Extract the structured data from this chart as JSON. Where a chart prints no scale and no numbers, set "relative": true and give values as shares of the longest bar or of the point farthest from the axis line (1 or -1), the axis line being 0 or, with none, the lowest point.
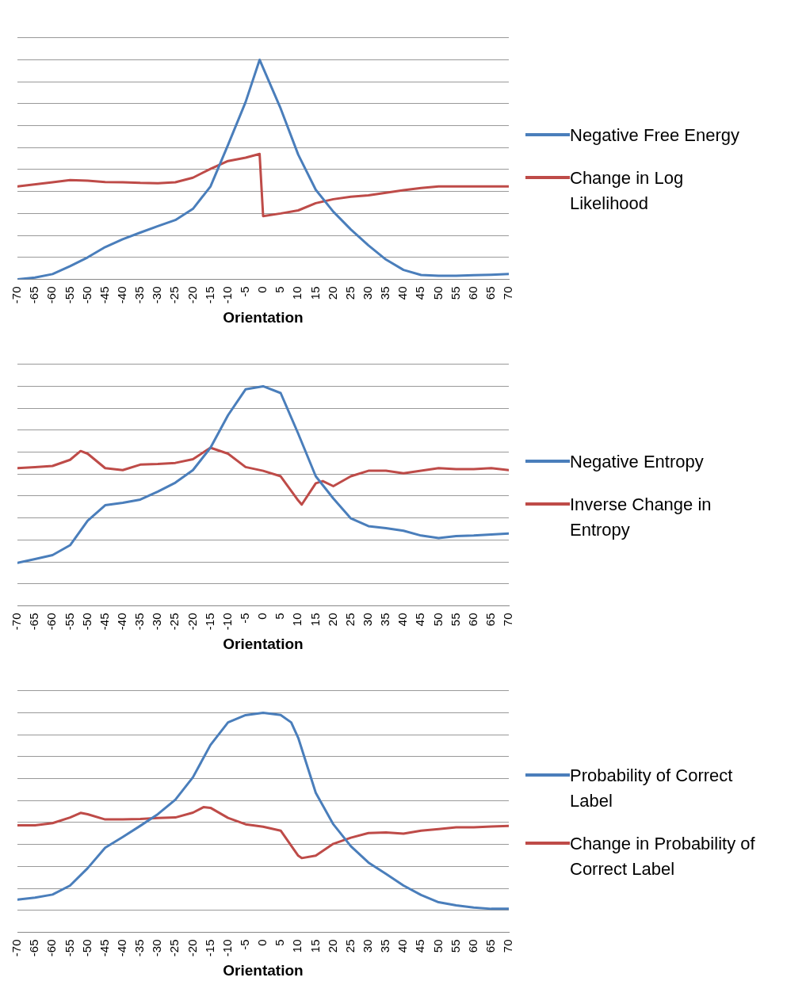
{
  "chart_data": [
    {
      "type": "line",
      "relative": true,
      "xlabel": "Orientation",
      "xlim": [
        -70,
        70
      ],
      "xticks": [
        -70,
        -65,
        -60,
        -55,
        -50,
        -45,
        -40,
        -35,
        -30,
        -25,
        -20,
        -15,
        -10,
        -5,
        0,
        5,
        10,
        15,
        20,
        25,
        30,
        35,
        40,
        45,
        50,
        55,
        60,
        65,
        70
      ],
      "grid": "y",
      "legend": "right",
      "marker": "none",
      "series": [
        {
          "name": "Negative Free Energy",
          "color": "#4a7ebb",
          "x": [
            -70,
            -65,
            -60,
            -55,
            -50,
            -45,
            -40,
            -35,
            -30,
            -25,
            -20,
            -15,
            -10,
            -5,
            -1,
            5,
            10,
            15,
            20,
            25,
            30,
            35,
            40,
            45,
            50,
            55,
            60,
            65,
            70
          ],
          "values": [
            0,
            0.008,
            0.024,
            0.06,
            0.1,
            0.147,
            0.183,
            0.213,
            0.242,
            0.27,
            0.321,
            0.423,
            0.612,
            0.807,
            1,
            0.778,
            0.568,
            0.408,
            0.308,
            0.227,
            0.155,
            0.09,
            0.043,
            0.02,
            0.016,
            0.016,
            0.019,
            0.021,
            0.024
          ]
        },
        {
          "name": "Change in Log Likelihood",
          "color": "#be4b48",
          "x": [
            -70,
            -60,
            -55,
            -50,
            -45,
            -40,
            -35,
            -30,
            -25,
            -20,
            -15,
            -10,
            -5,
            -1,
            0,
            5,
            10,
            15,
            20,
            25,
            30,
            35,
            40,
            45,
            50,
            55,
            60,
            65,
            70
          ],
          "values": [
            0.423,
            0.442,
            0.452,
            0.449,
            0.443,
            0.442,
            0.439,
            0.438,
            0.442,
            0.463,
            0.503,
            0.539,
            0.554,
            0.571,
            0.288,
            0.3,
            0.314,
            0.347,
            0.365,
            0.376,
            0.383,
            0.394,
            0.406,
            0.416,
            0.423,
            0.423,
            0.423,
            0.423,
            0.423
          ]
        }
      ]
    },
    {
      "type": "line",
      "relative": true,
      "xlabel": "Orientation",
      "xlim": [
        -70,
        70
      ],
      "xticks": [
        -70,
        -65,
        -60,
        -55,
        -50,
        -45,
        -40,
        -35,
        -30,
        -25,
        -20,
        -15,
        -10,
        -5,
        0,
        5,
        10,
        15,
        20,
        25,
        30,
        35,
        40,
        45,
        50,
        55,
        60,
        65,
        70
      ],
      "grid": "y",
      "legend": "right",
      "marker": "none",
      "series": [
        {
          "name": "Negative Entropy",
          "color": "#4a7ebb",
          "x": [
            -70,
            -65,
            -60,
            -55,
            -50,
            -45,
            -40,
            -35,
            -30,
            -25,
            -20,
            -15,
            -10,
            -5,
            0,
            5,
            10,
            15,
            20,
            25,
            30,
            35,
            40,
            45,
            50,
            55,
            60,
            65,
            70
          ],
          "values": [
            0.196,
            0.213,
            0.231,
            0.276,
            0.388,
            0.458,
            0.469,
            0.484,
            0.52,
            0.561,
            0.618,
            0.72,
            0.868,
            0.986,
            1,
            0.969,
            0.784,
            0.59,
            0.489,
            0.398,
            0.363,
            0.354,
            0.342,
            0.32,
            0.309,
            0.318,
            0.32,
            0.325,
            0.329
          ]
        },
        {
          "name": "Inverse Change in Entropy",
          "color": "#be4b48",
          "x": [
            -70,
            -65,
            -60,
            -55,
            -52,
            -50,
            -45,
            -40,
            -35,
            -30,
            -25,
            -20,
            -15,
            -10,
            -5,
            0,
            5,
            10,
            11,
            15,
            17,
            20,
            25,
            30,
            35,
            40,
            45,
            50,
            55,
            60,
            65,
            70
          ],
          "values": [
            0.627,
            0.632,
            0.637,
            0.665,
            0.705,
            0.693,
            0.627,
            0.618,
            0.643,
            0.646,
            0.651,
            0.668,
            0.72,
            0.693,
            0.632,
            0.615,
            0.59,
            0.48,
            0.461,
            0.558,
            0.568,
            0.545,
            0.59,
            0.615,
            0.615,
            0.604,
            0.615,
            0.627,
            0.623,
            0.623,
            0.627,
            0.618
          ]
        }
      ]
    },
    {
      "type": "line",
      "relative": true,
      "xlabel": "Orientation",
      "xlim": [
        -70,
        70
      ],
      "xticks": [
        -70,
        -65,
        -60,
        -55,
        -50,
        -45,
        -40,
        -35,
        -30,
        -25,
        -20,
        -15,
        -10,
        -5,
        0,
        5,
        10,
        15,
        20,
        25,
        30,
        35,
        40,
        45,
        50,
        55,
        60,
        65,
        70
      ],
      "grid": "y",
      "legend": "right",
      "marker": "none",
      "series": [
        {
          "name": "Probability of Correct Label",
          "color": "#4a7ebb",
          "x": [
            -70,
            -65,
            -60,
            -55,
            -50,
            -45,
            -40,
            -35,
            -30,
            -25,
            -20,
            -15,
            -10,
            -5,
            0,
            5,
            8,
            10,
            15,
            20,
            25,
            30,
            35,
            40,
            45,
            50,
            55,
            60,
            65,
            70
          ],
          "values": [
            0.149,
            0.158,
            0.172,
            0.213,
            0.292,
            0.385,
            0.434,
            0.485,
            0.538,
            0.604,
            0.706,
            0.853,
            0.956,
            0.989,
            1,
            0.99,
            0.956,
            0.886,
            0.635,
            0.492,
            0.392,
            0.318,
            0.266,
            0.213,
            0.17,
            0.137,
            0.123,
            0.113,
            0.107,
            0.107
          ]
        },
        {
          "name": "Change in Probability of Correct Label",
          "color": "#be4b48",
          "x": [
            -70,
            -65,
            -60,
            -55,
            -52,
            -50,
            -45,
            -40,
            -35,
            -30,
            -25,
            -20,
            -17,
            -15,
            -10,
            -5,
            0,
            5,
            10,
            11,
            15,
            20,
            25,
            30,
            35,
            40,
            45,
            50,
            55,
            60,
            65,
            70
          ],
          "values": [
            0.487,
            0.487,
            0.497,
            0.523,
            0.544,
            0.538,
            0.514,
            0.514,
            0.516,
            0.521,
            0.523,
            0.545,
            0.57,
            0.567,
            0.521,
            0.492,
            0.481,
            0.463,
            0.349,
            0.338,
            0.349,
            0.403,
            0.431,
            0.452,
            0.455,
            0.449,
            0.463,
            0.47,
            0.478,
            0.478,
            0.482,
            0.485
          ]
        }
      ]
    }
  ]
}
